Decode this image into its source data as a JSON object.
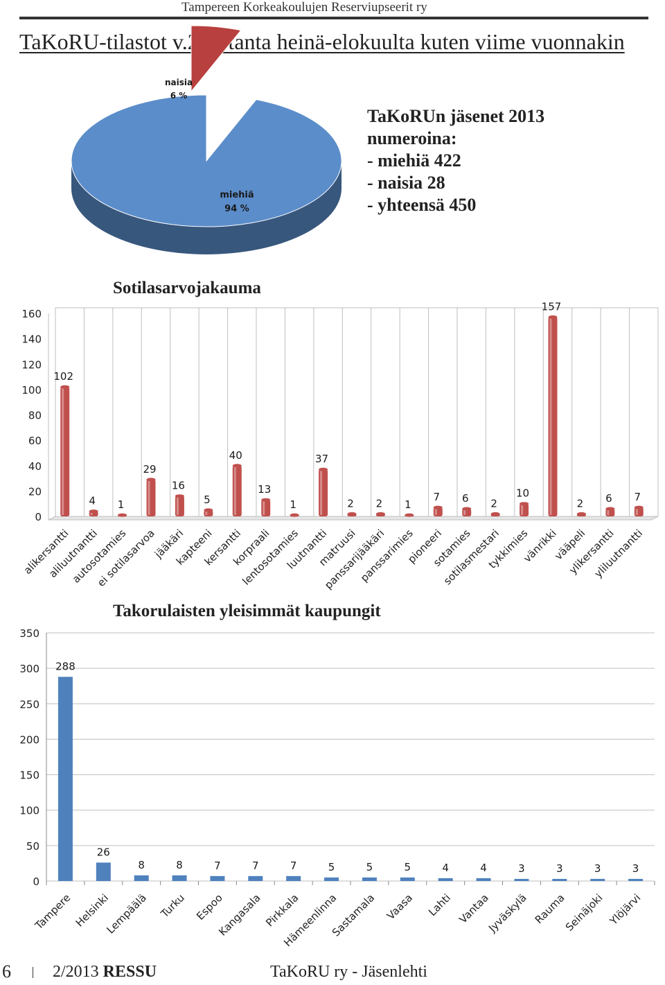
{
  "header": {
    "org": "Tampereen Korkeakoulujen Reserviupseerit ry",
    "title": "TaKoRU-tilastot v.2 - otanta heinä-elokuulta kuten viime vuonnakin"
  },
  "members": {
    "lines": [
      "TaKoRUn jäsenet 2013",
      "numeroina:",
      "- miehiä 422",
      "- naisia 28",
      "- yhteensä 450"
    ]
  },
  "colors": {
    "pie_men": "#5b8dca",
    "pie_women": "#b8403e",
    "bar_red": "#c0504d",
    "bar_blue": "#4f81bd"
  },
  "chart_data": [
    {
      "type": "pie",
      "title": "",
      "slices": [
        {
          "label": "miehiä",
          "pct_label": "94 %",
          "value": 94
        },
        {
          "label": "naisia",
          "pct_label": "6 %",
          "value": 6
        }
      ]
    },
    {
      "type": "bar",
      "title": "Sotilasarvojakauma",
      "categories": [
        "alikersantti",
        "aliluutnantti",
        "autosotamies",
        "ei sotilasarvoa",
        "jääkäri",
        "kapteeni",
        "kersantti",
        "korpraali",
        "lentosotamies",
        "luutnantti",
        "matruusi",
        "panssarijääkäri",
        "panssarimies",
        "pioneeri",
        "sotamies",
        "sotilasmestari",
        "tykkimies",
        "vänrikki",
        "vääpeli",
        "ylikersantti",
        "yliluutnantti"
      ],
      "values": [
        102,
        4,
        1,
        29,
        16,
        5,
        40,
        13,
        1,
        37,
        2,
        2,
        1,
        7,
        6,
        2,
        10,
        157,
        2,
        6,
        7
      ],
      "ylim": [
        0,
        160
      ],
      "yticks": [
        0,
        20,
        40,
        60,
        80,
        100,
        120,
        140,
        160
      ],
      "grid": "vertical"
    },
    {
      "type": "bar",
      "title": "Takorulaisten yleisimmät kaupungit",
      "categories": [
        "Tampere",
        "Helsinki",
        "Lempäälä",
        "Turku",
        "Espoo",
        "Kangasala",
        "Pirkkala",
        "Hämeenlinna",
        "Sastamala",
        "Vaasa",
        "Lahti",
        "Vantaa",
        "Jyväskylä",
        "Rauma",
        "Seinäjoki",
        "Ylöjärvi"
      ],
      "values": [
        288,
        26,
        8,
        8,
        7,
        7,
        7,
        5,
        5,
        5,
        4,
        4,
        3,
        3,
        3,
        3
      ],
      "ylim": [
        0,
        350
      ],
      "yticks": [
        0,
        50,
        100,
        150,
        200,
        250,
        300,
        350
      ],
      "grid": "horizontal"
    }
  ],
  "footer": {
    "page": "6",
    "issue": "2/2013",
    "mag": "RESSU",
    "publisher": "TaKoRU ry - Jäsenlehti"
  }
}
